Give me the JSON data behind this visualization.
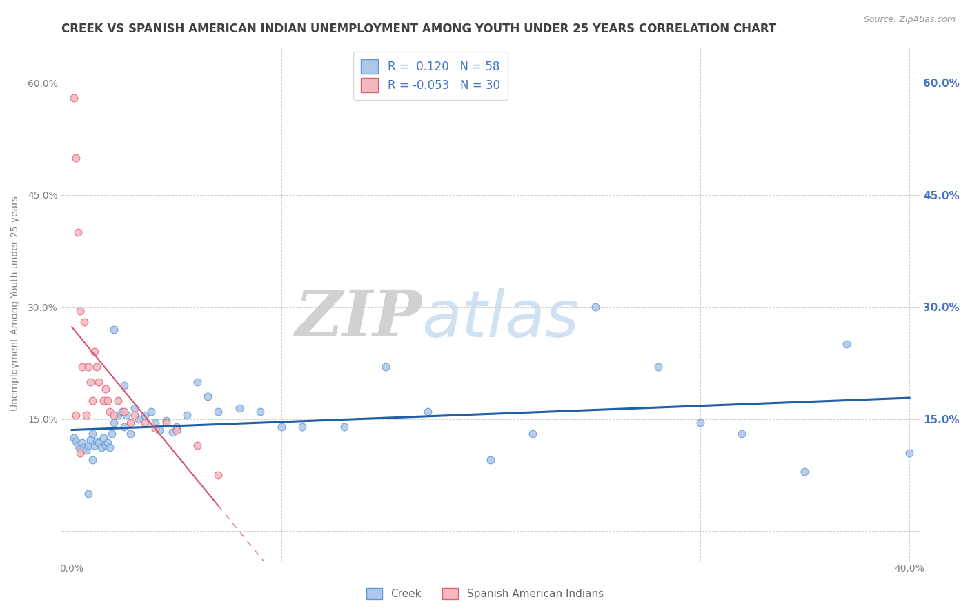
{
  "title": "CREEK VS SPANISH AMERICAN INDIAN UNEMPLOYMENT AMONG YOUTH UNDER 25 YEARS CORRELATION CHART",
  "source": "Source: ZipAtlas.com",
  "ylabel": "Unemployment Among Youth under 25 years",
  "xlabel_ticks": [
    "0.0%",
    "",
    "",
    "",
    "40.0%"
  ],
  "xlabel_vals": [
    0.0,
    0.1,
    0.2,
    0.3,
    0.4
  ],
  "ylabel_ticks": [
    "",
    "15.0%",
    "30.0%",
    "45.0%",
    "60.0%"
  ],
  "ylabel_vals": [
    0.0,
    0.15,
    0.3,
    0.45,
    0.6
  ],
  "right_yticks": [
    "15.0%",
    "30.0%",
    "45.0%",
    "60.0%"
  ],
  "right_ytick_vals": [
    0.15,
    0.3,
    0.45,
    0.6
  ],
  "creek_R": 0.12,
  "creek_N": 58,
  "spanish_R": -0.053,
  "spanish_N": 30,
  "creek_color": "#aec6e8",
  "creek_edge_color": "#5b9bd5",
  "spanish_color": "#f4b8c1",
  "spanish_edge_color": "#e06070",
  "trend_creek_color": "#1f5fa6",
  "trend_spanish_color": "#d45070",
  "background_color": "#ffffff",
  "grid_color": "#cccccc",
  "title_color": "#404040",
  "axis_label_color": "#808080",
  "right_tick_color": "#4472c4",
  "legend_text_color": "#4472c4",
  "creek_x": [
    0.001,
    0.002,
    0.003,
    0.004,
    0.005,
    0.006,
    0.007,
    0.008,
    0.009,
    0.01,
    0.011,
    0.012,
    0.013,
    0.014,
    0.015,
    0.016,
    0.017,
    0.018,
    0.019,
    0.02,
    0.022,
    0.024,
    0.025,
    0.026,
    0.028,
    0.03,
    0.032,
    0.035,
    0.038,
    0.04,
    0.042,
    0.045,
    0.048,
    0.05,
    0.055,
    0.06,
    0.065,
    0.07,
    0.08,
    0.09,
    0.1,
    0.11,
    0.13,
    0.15,
    0.17,
    0.2,
    0.22,
    0.25,
    0.28,
    0.3,
    0.32,
    0.35,
    0.37,
    0.4,
    0.02,
    0.025,
    0.01,
    0.008
  ],
  "creek_y": [
    0.125,
    0.12,
    0.115,
    0.11,
    0.118,
    0.112,
    0.108,
    0.115,
    0.122,
    0.13,
    0.115,
    0.12,
    0.118,
    0.112,
    0.125,
    0.115,
    0.118,
    0.112,
    0.13,
    0.145,
    0.155,
    0.16,
    0.14,
    0.155,
    0.13,
    0.165,
    0.15,
    0.155,
    0.16,
    0.145,
    0.135,
    0.148,
    0.132,
    0.14,
    0.155,
    0.2,
    0.18,
    0.16,
    0.165,
    0.16,
    0.14,
    0.14,
    0.14,
    0.22,
    0.16,
    0.095,
    0.13,
    0.3,
    0.22,
    0.145,
    0.13,
    0.08,
    0.25,
    0.105,
    0.27,
    0.195,
    0.095,
    0.05
  ],
  "spanish_x": [
    0.001,
    0.002,
    0.003,
    0.004,
    0.005,
    0.006,
    0.007,
    0.008,
    0.009,
    0.01,
    0.011,
    0.012,
    0.013,
    0.015,
    0.016,
    0.017,
    0.018,
    0.02,
    0.022,
    0.025,
    0.028,
    0.03,
    0.035,
    0.04,
    0.045,
    0.05,
    0.06,
    0.07,
    0.002,
    0.004
  ],
  "spanish_y": [
    0.58,
    0.5,
    0.4,
    0.295,
    0.22,
    0.28,
    0.155,
    0.22,
    0.2,
    0.175,
    0.24,
    0.22,
    0.2,
    0.175,
    0.19,
    0.175,
    0.16,
    0.155,
    0.175,
    0.16,
    0.145,
    0.155,
    0.145,
    0.138,
    0.145,
    0.135,
    0.115,
    0.075,
    0.155,
    0.105
  ],
  "xlim": [
    -0.005,
    0.405
  ],
  "ylim": [
    -0.04,
    0.65
  ],
  "watermark_zip": "ZIP",
  "watermark_atlas": "atlas",
  "marker_size": 60,
  "title_fontsize": 12,
  "axis_fontsize": 10,
  "legend_fontsize": 12
}
